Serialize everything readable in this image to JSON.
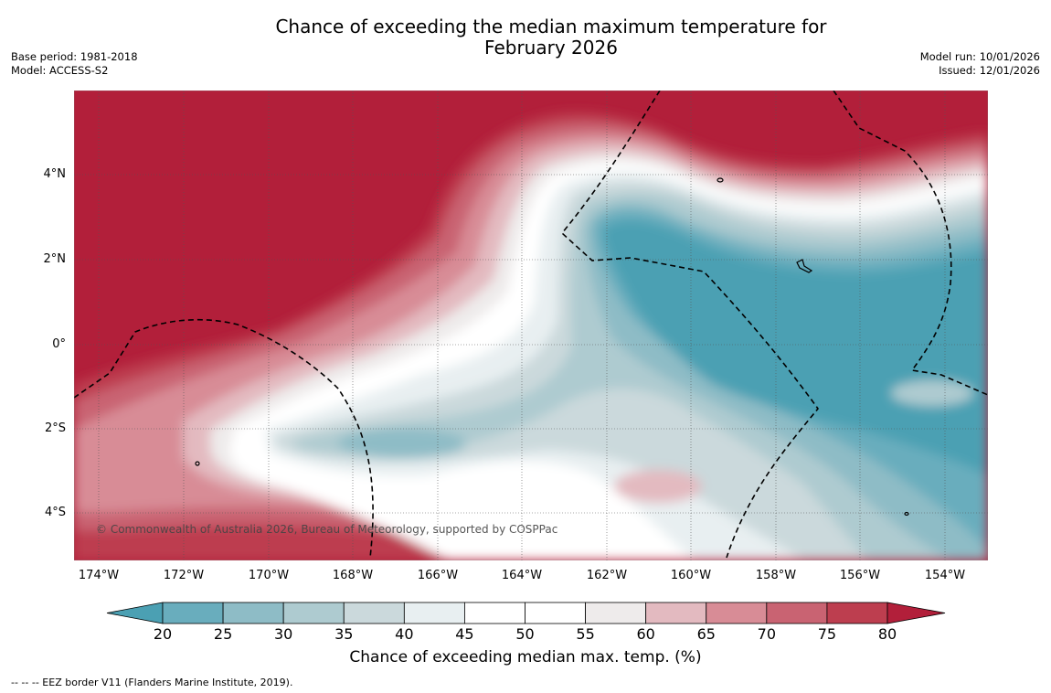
{
  "title_line1": "Chance of exceeding the median maximum temperature for",
  "title_line2": "February 2026",
  "base_period": "Base period: 1981-2018",
  "model": "Model: ACCESS-S2",
  "model_run": "Model run: 10/01/2026",
  "issued": "Issued: 12/01/2026",
  "copyright": "© Commonwealth of Australia 2026, Bureau of Meteorology, supported by COSPPac",
  "lat_labels": [
    "4°N",
    "2°N",
    "0°",
    "2°S",
    "4°S"
  ],
  "lon_labels": [
    "174°W",
    "172°W",
    "170°W",
    "168°W",
    "166°W",
    "164°W",
    "162°W",
    "160°W",
    "158°W",
    "156°W",
    "154°W"
  ],
  "colorbar": {
    "ticks": [
      "20",
      "25",
      "30",
      "35",
      "40",
      "45",
      "50",
      "55",
      "60",
      "65",
      "70",
      "75",
      "80"
    ],
    "colors": [
      "#4ba0b3",
      "#69adbd",
      "#8ebcc6",
      "#aecbd0",
      "#cbd9dc",
      "#e8eff1",
      "#ffffff",
      "#ffffff",
      "#eeebeb",
      "#e3bac0",
      "#d88c96",
      "#c96372",
      "#bd3e4f",
      "#b21f3a"
    ],
    "title": "Chance of exceeding median max. temp. (%)"
  },
  "footnote": "--  --  -- EEZ border V11 (Flanders Marine Institute, 2019)."
}
